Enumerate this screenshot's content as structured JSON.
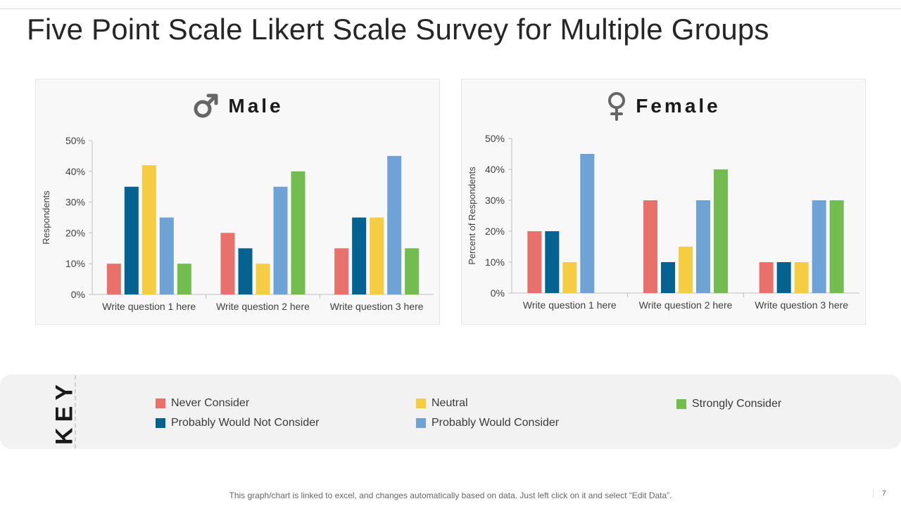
{
  "title": "Five Point Scale Likert Scale Survey for Multiple Groups",
  "colors": {
    "never": "#E8716C",
    "not_consider": "#03628F",
    "neutral": "#F5CD43",
    "would_consider": "#6FA3D6",
    "strongly": "#73BD50"
  },
  "chart_data": [
    {
      "type": "bar",
      "title": "Male",
      "icon": "male-icon",
      "ylabel": "Respondents",
      "xlabel": "",
      "ylim": [
        0,
        50
      ],
      "yticks": [
        "0%",
        "10%",
        "20%",
        "30%",
        "40%",
        "50%"
      ],
      "categories": [
        "Write question 1 here",
        "Write question 2 here",
        "Write question 3 here"
      ],
      "series": [
        {
          "name": "Never Consider",
          "values": [
            10,
            20,
            15
          ]
        },
        {
          "name": "Probably Would Not Consider",
          "values": [
            35,
            15,
            25
          ]
        },
        {
          "name": "Neutral",
          "values": [
            42,
            10,
            25
          ]
        },
        {
          "name": "Probably Would Consider",
          "values": [
            25,
            35,
            45
          ]
        },
        {
          "name": "Strongly Consider",
          "values": [
            10,
            40,
            15
          ]
        }
      ]
    },
    {
      "type": "bar",
      "title": "Female",
      "icon": "female-icon",
      "ylabel": "Percent of Respondents",
      "xlabel": "",
      "ylim": [
        0,
        50
      ],
      "yticks": [
        "0%",
        "10%",
        "20%",
        "30%",
        "40%",
        "50%"
      ],
      "categories": [
        "Write question 1 here",
        "Write question 2 here",
        "Write question 3 here"
      ],
      "series": [
        {
          "name": "Never Consider",
          "values": [
            20,
            30,
            10
          ]
        },
        {
          "name": "Probably Would Not Consider",
          "values": [
            20,
            10,
            10
          ]
        },
        {
          "name": "Neutral",
          "values": [
            10,
            15,
            10
          ]
        },
        {
          "name": "Probably Would Consider",
          "values": [
            45,
            30,
            30
          ]
        },
        {
          "name": "Strongly Consider",
          "values": [
            0,
            40,
            30
          ]
        }
      ]
    }
  ],
  "key": {
    "title": "KEY",
    "items": [
      "Never Consider",
      "Probably Would Not Consider",
      "Neutral",
      "Probably Would Consider",
      "Strongly Consider"
    ]
  },
  "footer": "This graph/chart is linked to excel, and changes automatically based on data. Just left click on it and select “Edit Data”.",
  "page_number": "7"
}
